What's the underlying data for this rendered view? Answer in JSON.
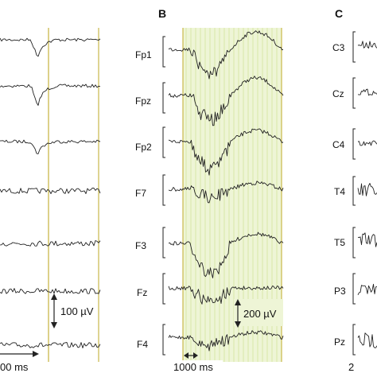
{
  "panels": [
    {
      "id": "A",
      "label": "",
      "channels": [
        "",
        "",
        "",
        "",
        "",
        "",
        ""
      ],
      "amp_scale": "100 µV",
      "time_scale": "00 ms"
    },
    {
      "id": "B",
      "label": "B",
      "channels": [
        "Fp1",
        "Fpz",
        "Fp2",
        "F7",
        "F3",
        "Fz",
        "F4"
      ],
      "amp_scale": "200 µV",
      "time_scale": "1000 ms"
    },
    {
      "id": "C",
      "label": "C",
      "channels": [
        "C3",
        "Cz",
        "C4",
        "T4",
        "T5",
        "P3",
        "Pz"
      ],
      "amp_scale": "",
      "time_scale": "2"
    }
  ],
  "colors": {
    "background": "#ffffff",
    "trace": "#222222",
    "marker_line": "#c9b84a",
    "highlight_bg": "#eef5d6",
    "highlight_line": "#d8e6a8"
  }
}
